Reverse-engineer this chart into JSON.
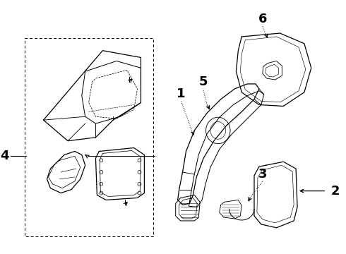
{
  "bg_color": "#ffffff",
  "line_color": "#000000",
  "lw": 0.9,
  "label_fontsize": 13,
  "label_fontweight": "bold",
  "fig_w": 4.9,
  "fig_h": 3.6,
  "dpi": 100
}
